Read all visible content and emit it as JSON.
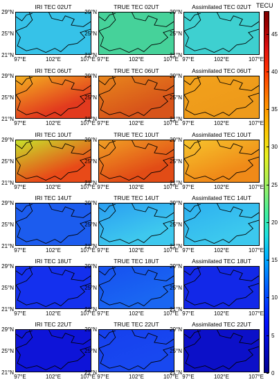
{
  "rows": [
    {
      "panels": [
        {
          "title": "IRI TEC  02UT",
          "color": "#36c2e8"
        },
        {
          "title": "TRUE TEC  02UT",
          "color": "#46d29a"
        },
        {
          "title": "Assimilated TEC  02UT",
          "color": "#3ed0d0"
        }
      ]
    },
    {
      "panels": [
        {
          "title": "IRI TEC  06UT",
          "color": "#e23a1e",
          "color2": "#f4b020"
        },
        {
          "title": "TRUE TEC  06UT",
          "color": "#d8541a",
          "color2": "#e8861c"
        },
        {
          "title": "Assimilated TEC  06UT",
          "color": "#ee9a1a",
          "color2": "#f2a21c"
        }
      ]
    },
    {
      "panels": [
        {
          "title": "IRI TEC  10UT",
          "color": "#e84a18",
          "color2": "#c8e22a"
        },
        {
          "title": "TRUE TEC  10UT",
          "color": "#e24c16",
          "color2": "#f0a024"
        },
        {
          "title": "Assimilated TEC  10UT",
          "color": "#f08a18",
          "color2": "#f6c42c"
        }
      ]
    },
    {
      "panels": [
        {
          "title": "IRI TEC  14UT",
          "color": "#1c5cee"
        },
        {
          "title": "TRUE TEC  14UT",
          "color": "#3ec8ee",
          "color2": "#2a9ef2"
        },
        {
          "title": "Assimilated TEC  14UT",
          "color": "#3cc8ee",
          "color2": "#2eb0f0"
        }
      ]
    },
    {
      "panels": [
        {
          "title": "IRI TEC  18UT",
          "color": "#1430ee"
        },
        {
          "title": "TRUE TEC  18UT",
          "color": "#1a66f2",
          "color2": "#1650f0"
        },
        {
          "title": "Assimilated TEC  18UT",
          "color": "#1228e8"
        }
      ]
    },
    {
      "panels": [
        {
          "title": "IRI TEC  22UT",
          "color": "#0e14d8"
        },
        {
          "title": "TRUE TEC  22UT",
          "color": "#1848f0",
          "color2": "#1640ee"
        },
        {
          "title": "Assimilated TEC  22UT",
          "color": "#0c10c8"
        }
      ]
    }
  ],
  "lat_labels": [
    "29°N",
    "25°N",
    "21°N"
  ],
  "lon_labels": [
    "97°E",
    "102°E",
    "107°E"
  ],
  "colorbar": {
    "title": "TECU",
    "ticks": [
      "45",
      "40",
      "35",
      "30",
      "25",
      "20",
      "15",
      "10",
      "5",
      "0"
    ],
    "min": 0,
    "max": 48
  }
}
